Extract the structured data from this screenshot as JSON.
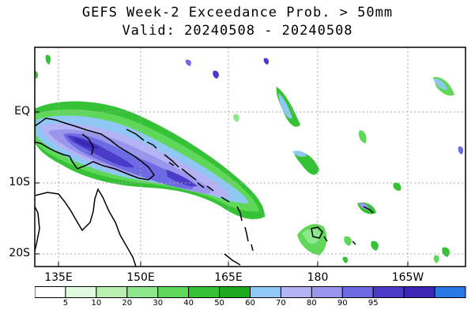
{
  "title": "GEFS Week-2 Exceedance Prob. > 50mm",
  "subtitle": "Valid: 20240508 - 20240508",
  "chart_data": {
    "type": "heatmap",
    "variable": "Exceedance probability of precipitation > 50mm (%)",
    "lon_range": [
      130,
      195
    ],
    "lat_range": [
      -22,
      11
    ],
    "y_ticks": [
      "EQ",
      "10S",
      "20S"
    ],
    "x_ticks": [
      "135E",
      "150E",
      "165E",
      "180",
      "165W"
    ],
    "legend_thresholds": [
      "5",
      "10",
      "20",
      "30",
      "40",
      "50",
      "60",
      "70",
      "80",
      "90",
      "95"
    ],
    "legend_colors": [
      "#ffffff",
      "#e0fbe0",
      "#b8f0b0",
      "#8ce88a",
      "#5fd85a",
      "#36c236",
      "#1ea81e",
      "#8fc8f5",
      "#b4b4f5",
      "#9a96ee",
      "#6e6ae4",
      "#4a3cc8",
      "#3c28b4",
      "#2a78e8"
    ],
    "features": [
      {
        "region": "New Guinea / Solomon Islands band",
        "max_prob_range": "80-95"
      },
      {
        "region": "Equatorial central Pacific near 180",
        "max_prob_range": "30-70"
      },
      {
        "region": "Fiji area ~17S 180",
        "max_prob_range": "20-50"
      }
    ],
    "grid": true
  }
}
